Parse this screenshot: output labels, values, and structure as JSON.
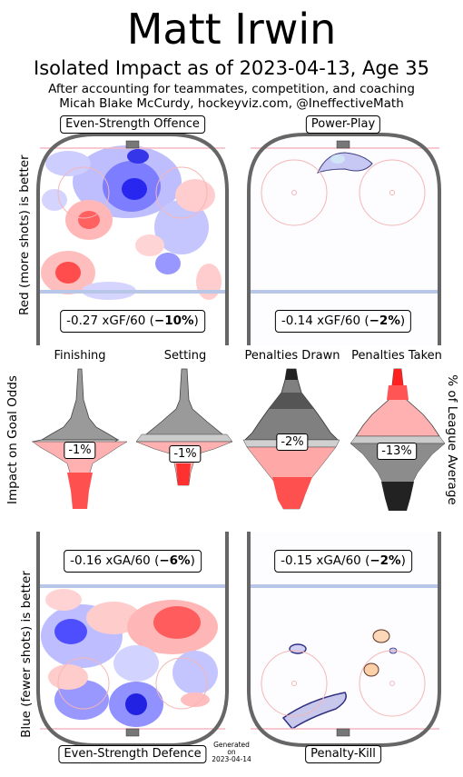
{
  "header": {
    "player_name": "Matt Irwin",
    "subtitle": "Isolated Impact as of 2023-04-13, Age 35",
    "byline_1": "After accounting for teammates, competition, and coaching",
    "byline_2": "Micah Blake McCurdy, hockeyviz.com, @IneffectiveMath"
  },
  "chart_data": [
    {
      "type": "heatmap",
      "panel": "Even-Strength Offence",
      "stat_text": "-0.27 xGF/60 (",
      "stat_bold": "−10%",
      "stat_close": ")",
      "xgf_per_60": -0.27,
      "pct_vs_league": -10,
      "ylabel": "Red (more shots) is better"
    },
    {
      "type": "heatmap",
      "panel": "Power-Play",
      "stat_text": "-0.14 xGF/60 (",
      "stat_bold": "−2%",
      "stat_close": ")",
      "xgf_per_60": -0.14,
      "pct_vs_league": -2
    },
    {
      "type": "violin",
      "ylabel_left": "Impact on Goal Odds",
      "ylabel_right": "% of League Average",
      "categories": [
        "Finishing",
        "Setting",
        "Penalties Drawn",
        "Penalties Taken"
      ],
      "value_labels": [
        "-1%",
        "-1%",
        "-2%",
        "-13%"
      ],
      "values": [
        -1,
        -1,
        -2,
        -13
      ]
    },
    {
      "type": "heatmap",
      "panel": "Even-Strength Defence",
      "stat_text": "-0.16 xGA/60 (",
      "stat_bold": "−6%",
      "stat_close": ")",
      "xga_per_60": -0.16,
      "pct_vs_league": -6,
      "ylabel": "Blue (fewer shots) is better"
    },
    {
      "type": "heatmap",
      "panel": "Penalty-Kill",
      "stat_text": "-0.15 xGA/60 (",
      "stat_bold": "−2%",
      "stat_close": ")",
      "xga_per_60": -0.15,
      "pct_vs_league": -2
    }
  ],
  "footer": {
    "generated_1": "Generated",
    "generated_2": "on",
    "generated_3": "2023-04-14"
  },
  "colors": {
    "rink_board": "#666666",
    "goal_line": "#f4b8c0",
    "blue_line": "#b8c6e8",
    "faceoff": "#f5b6b6",
    "good_red": "#ff2020",
    "bad_blue": "#2020ff"
  }
}
